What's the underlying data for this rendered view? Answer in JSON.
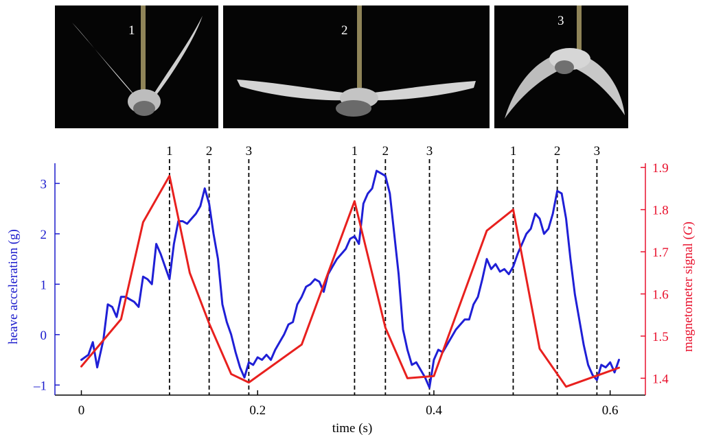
{
  "photos": [
    {
      "label": "1"
    },
    {
      "label": "2"
    },
    {
      "label": "3"
    }
  ],
  "colors": {
    "left_axis": "#1a1acc",
    "right_axis": "#e8112d",
    "heave_line": "#1f1fd6",
    "magnet_line": "#e8201e",
    "markers": "#000000"
  },
  "chart_data": {
    "type": "line",
    "xlabel": "time (s)",
    "ylabel_left": "heave acceleration (g)",
    "ylabel_right": "magnetometer signal (G)",
    "xlim": [
      -0.03,
      0.64
    ],
    "ylim_left": [
      -1.2,
      3.4
    ],
    "ylim_right": [
      1.36,
      1.91
    ],
    "x_ticks": [
      0,
      0.2,
      0.4,
      0.6
    ],
    "x_tick_labels": [
      "0",
      "0.2",
      "0.4",
      "0.6"
    ],
    "y_left_ticks": [
      -1,
      0,
      1,
      2,
      3
    ],
    "y_left_tick_labels": [
      "–1",
      "0",
      "1",
      "2",
      "3"
    ],
    "y_right_ticks": [
      1.4,
      1.5,
      1.6,
      1.7,
      1.8,
      1.9
    ],
    "y_right_tick_labels": [
      "1.4",
      "1.5",
      "1.6",
      "1.7",
      "1.8",
      "1.9"
    ],
    "markers": [
      {
        "x": 0.1,
        "label": "1"
      },
      {
        "x": 0.145,
        "label": "2"
      },
      {
        "x": 0.19,
        "label": "3"
      },
      {
        "x": 0.31,
        "label": "1"
      },
      {
        "x": 0.345,
        "label": "2"
      },
      {
        "x": 0.395,
        "label": "3"
      },
      {
        "x": 0.49,
        "label": "1"
      },
      {
        "x": 0.54,
        "label": "2"
      },
      {
        "x": 0.585,
        "label": "3"
      }
    ],
    "series": [
      {
        "axis": "left",
        "x": [
          0,
          0.008,
          0.013,
          0.018,
          0.025,
          0.03,
          0.035,
          0.04,
          0.045,
          0.05,
          0.055,
          0.06,
          0.065,
          0.07,
          0.075,
          0.08,
          0.085,
          0.09,
          0.095,
          0.1,
          0.105,
          0.11,
          0.115,
          0.12,
          0.125,
          0.13,
          0.135,
          0.14,
          0.145,
          0.15,
          0.155,
          0.16,
          0.165,
          0.17,
          0.175,
          0.18,
          0.185,
          0.19,
          0.195,
          0.2,
          0.205,
          0.21,
          0.215,
          0.22,
          0.225,
          0.23,
          0.235,
          0.24,
          0.245,
          0.25,
          0.255,
          0.26,
          0.265,
          0.27,
          0.275,
          0.28,
          0.285,
          0.29,
          0.295,
          0.3,
          0.305,
          0.31,
          0.315,
          0.32,
          0.325,
          0.33,
          0.335,
          0.34,
          0.345,
          0.35,
          0.355,
          0.36,
          0.365,
          0.37,
          0.375,
          0.38,
          0.385,
          0.39,
          0.395,
          0.4,
          0.405,
          0.41,
          0.415,
          0.42,
          0.425,
          0.43,
          0.435,
          0.44,
          0.445,
          0.45,
          0.455,
          0.46,
          0.465,
          0.47,
          0.475,
          0.48,
          0.485,
          0.49,
          0.495,
          0.5,
          0.505,
          0.51,
          0.515,
          0.52,
          0.525,
          0.53,
          0.535,
          0.54,
          0.545,
          0.55,
          0.555,
          0.56,
          0.565,
          0.57,
          0.575,
          0.58,
          0.585,
          0.59,
          0.595,
          0.6,
          0.605,
          0.61
        ],
        "y": [
          -0.5,
          -0.4,
          -0.15,
          -0.65,
          -0.1,
          0.6,
          0.55,
          0.35,
          0.75,
          0.75,
          0.7,
          0.65,
          0.55,
          1.15,
          1.1,
          1.0,
          1.8,
          1.6,
          1.35,
          1.1,
          1.8,
          2.25,
          2.25,
          2.2,
          2.3,
          2.4,
          2.55,
          2.9,
          2.6,
          2.0,
          1.5,
          0.6,
          0.25,
          0.0,
          -0.35,
          -0.65,
          -0.85,
          -0.55,
          -0.6,
          -0.45,
          -0.5,
          -0.4,
          -0.5,
          -0.3,
          -0.15,
          0.0,
          0.2,
          0.25,
          0.6,
          0.75,
          0.95,
          1.0,
          1.1,
          1.05,
          0.85,
          1.2,
          1.35,
          1.5,
          1.6,
          1.7,
          1.9,
          1.95,
          1.8,
          2.6,
          2.8,
          2.9,
          3.25,
          3.2,
          3.15,
          2.8,
          2.0,
          1.2,
          0.1,
          -0.3,
          -0.6,
          -0.55,
          -0.7,
          -0.85,
          -1.05,
          -0.5,
          -0.3,
          -0.35,
          -0.2,
          -0.05,
          0.1,
          0.2,
          0.3,
          0.3,
          0.6,
          0.75,
          1.1,
          1.5,
          1.3,
          1.4,
          1.25,
          1.3,
          1.2,
          1.35,
          1.6,
          1.8,
          2.0,
          2.1,
          2.4,
          2.3,
          2.0,
          2.1,
          2.4,
          2.85,
          2.8,
          2.3,
          1.5,
          0.8,
          0.3,
          -0.2,
          -0.6,
          -0.8,
          -0.9,
          -0.6,
          -0.65,
          -0.55,
          -0.75,
          -0.5
        ]
      },
      {
        "axis": "right",
        "x": [
          0,
          0.045,
          0.07,
          0.1,
          0.123,
          0.145,
          0.17,
          0.19,
          0.25,
          0.31,
          0.345,
          0.37,
          0.4,
          0.46,
          0.49,
          0.52,
          0.55,
          0.61
        ],
        "y": [
          1.428,
          1.54,
          1.77,
          1.88,
          1.65,
          1.53,
          1.41,
          1.39,
          1.48,
          1.82,
          1.52,
          1.4,
          1.405,
          1.75,
          1.8,
          1.47,
          1.38,
          1.425
        ]
      }
    ]
  }
}
